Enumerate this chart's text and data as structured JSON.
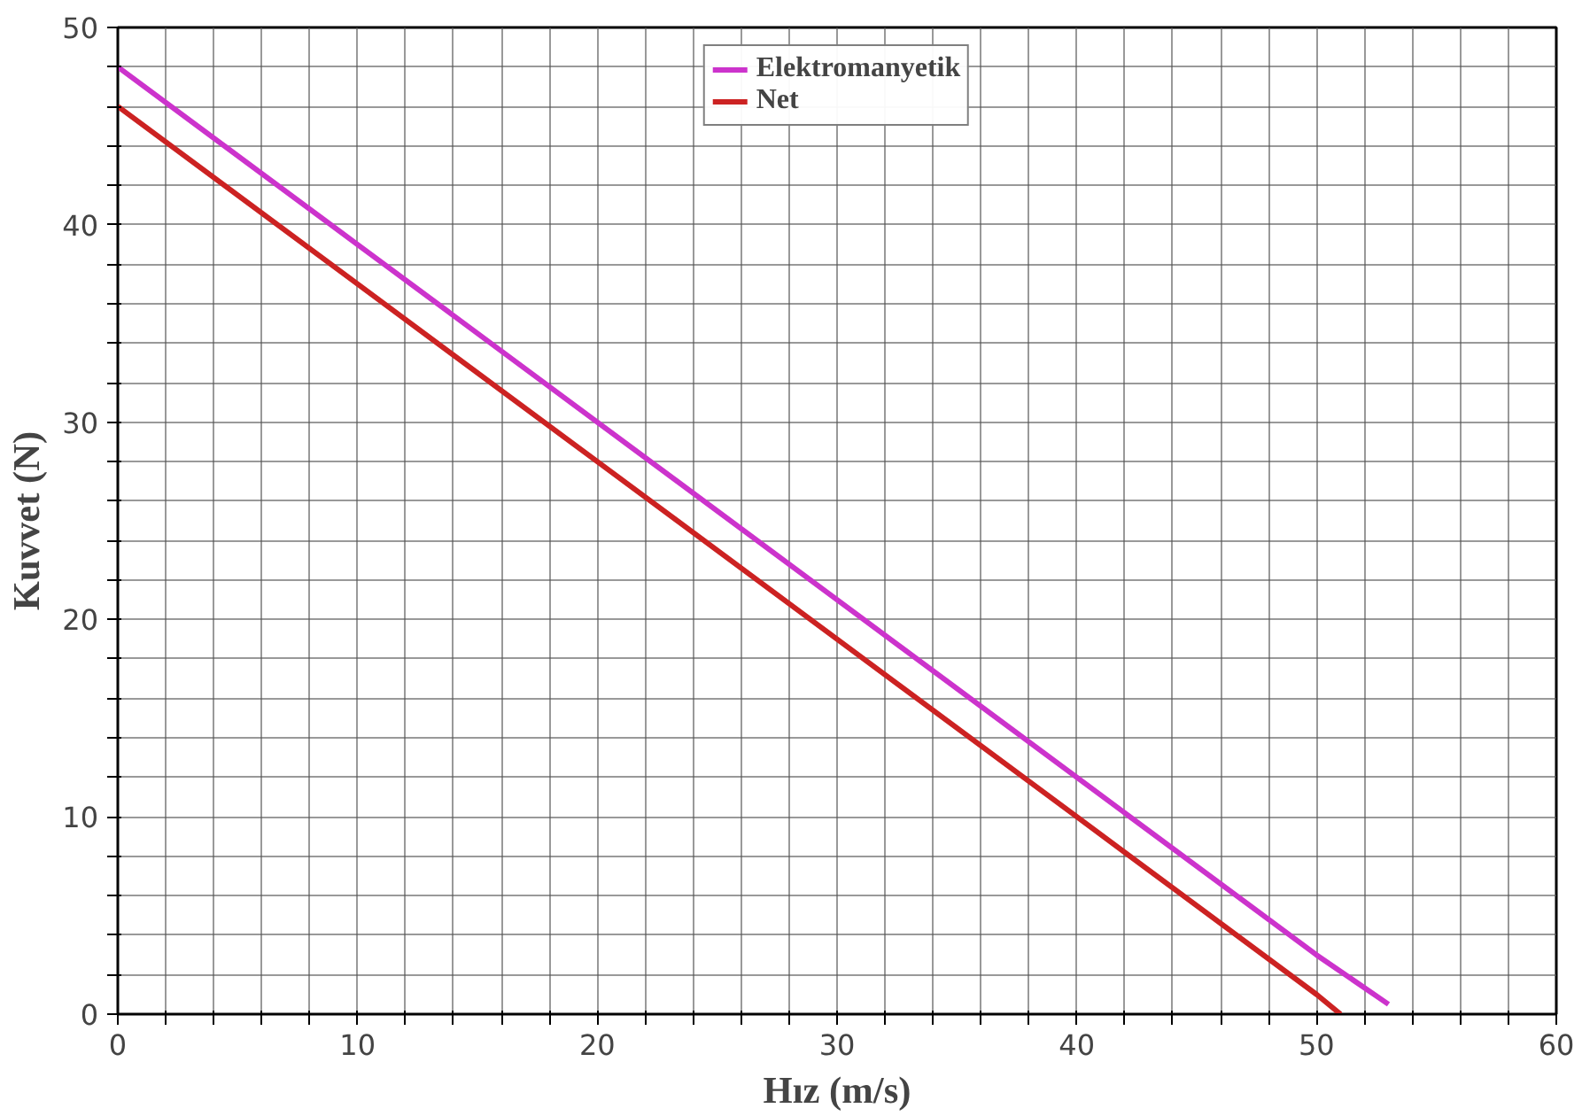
{
  "chart_data": {
    "type": "line",
    "xlabel": "Hız (m/s)",
    "ylabel": "Kuvvet (N)",
    "xlim": [
      0,
      60
    ],
    "ylim": [
      0,
      50
    ],
    "xticks": [
      0,
      {
        "value": 2,
        "label": null
      },
      {
        "value": 4,
        "label": null
      },
      {
        "value": 6,
        "label": null
      },
      {
        "value": 8,
        "label": null
      },
      10,
      {
        "value": 12,
        "label": null
      },
      {
        "value": 14,
        "label": null
      },
      {
        "value": 16,
        "label": null
      },
      {
        "value": 18,
        "label": null
      },
      20,
      {
        "value": 22,
        "label": null
      },
      {
        "value": 24,
        "label": null
      },
      {
        "value": 26,
        "label": null
      },
      {
        "value": 28,
        "label": null
      },
      30,
      {
        "value": 32,
        "label": null
      },
      {
        "value": 34,
        "label": null
      },
      {
        "value": 36,
        "label": null
      },
      {
        "value": 38,
        "label": null
      },
      40,
      {
        "value": 42,
        "label": null
      },
      {
        "value": 44,
        "label": null
      },
      {
        "value": 46,
        "label": null
      },
      {
        "value": 48,
        "label": null
      },
      50,
      {
        "value": 52,
        "label": null
      },
      {
        "value": 54,
        "label": null
      },
      {
        "value": 56,
        "label": null
      },
      {
        "value": 58,
        "label": null
      },
      60
    ],
    "yticks": [
      0,
      {
        "value": 2,
        "label": null
      },
      {
        "value": 4,
        "label": null
      },
      {
        "value": 6,
        "label": null
      },
      {
        "value": 8,
        "label": null
      },
      10,
      {
        "value": 12,
        "label": null
      },
      {
        "value": 14,
        "label": null
      },
      {
        "value": 16,
        "label": null
      },
      {
        "value": 18,
        "label": null
      },
      20,
      {
        "value": 22,
        "label": null
      },
      {
        "value": 24,
        "label": null
      },
      {
        "value": 26,
        "label": null
      },
      {
        "value": 28,
        "label": null
      },
      30,
      {
        "value": 32,
        "label": null
      },
      {
        "value": 34,
        "label": null
      },
      {
        "value": 36,
        "label": null
      },
      {
        "value": 38,
        "label": null
      },
      40,
      {
        "value": 42,
        "label": null
      },
      {
        "value": 44,
        "label": null
      },
      {
        "value": 46,
        "label": null
      },
      {
        "value": 48,
        "label": null
      },
      50
    ],
    "grid": true,
    "legend": "top",
    "marker": "none",
    "line_style": "solid",
    "series": [
      {
        "name": "Elektromanyetik",
        "color": "#cc33cc",
        "x": [
          0,
          10,
          20,
          30,
          40,
          50,
          53
        ],
        "values": [
          48,
          39,
          30,
          21,
          12,
          3,
          0.5
        ]
      },
      {
        "name": "Net",
        "color": "#cc2222",
        "x": [
          0,
          10,
          20,
          30,
          40,
          50,
          51
        ],
        "values": [
          46,
          37,
          28,
          19,
          10,
          1,
          0
        ]
      }
    ]
  }
}
